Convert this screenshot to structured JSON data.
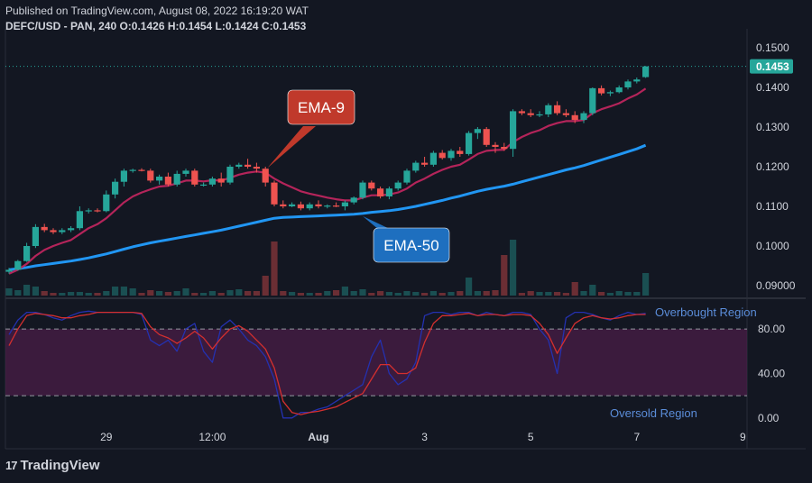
{
  "header": {
    "published": "Published on TradingView.com, August 08, 2022 16:19:20 WAT",
    "symbol_line": "DEFC/USD - PAN, 240 O:0.1426 H:0.1454 L:0.1424 C:0.1453"
  },
  "footer": {
    "brand": "TradingView",
    "logo": "17"
  },
  "colors": {
    "background": "#131722",
    "up": "#26a69a",
    "down": "#ef5350",
    "ema9": "#b4245a",
    "ema50": "#2196f3",
    "rsi_fast": "#2431b0",
    "rsi_slow": "#d32f2f",
    "rsi_band": "#4a1e47",
    "last_price_badge": "#26a69a",
    "ema9_callout": "#c0392b",
    "ema50_callout": "#1e6fbf"
  },
  "chart_data": [
    {
      "type": "candlestick",
      "symbol": "DEFC/USD",
      "exchange": "PAN",
      "timeframe": "240",
      "ylim": [
        0.0875,
        0.1525
      ],
      "yticks": [
        "0.1500",
        "0.1400",
        "0.1300",
        "0.1200",
        "0.1100",
        "0.1000",
        "0.09000"
      ],
      "ytick_values": [
        0.15,
        0.14,
        0.13,
        0.12,
        0.11,
        0.1,
        0.09
      ],
      "last_price_label": "0.1453",
      "last_price": 0.1453,
      "xticks": [
        {
          "label": "29",
          "index": 11
        },
        {
          "label": "12:00",
          "index": 23
        },
        {
          "label": "Aug",
          "index": 35
        },
        {
          "label": "3",
          "index": 47
        },
        {
          "label": "5",
          "index": 59
        },
        {
          "label": "7",
          "index": 71
        },
        {
          "label": "9",
          "index": 83
        }
      ],
      "candles": [
        [
          0.0935,
          0.0945,
          0.093,
          0.094
        ],
        [
          0.094,
          0.0965,
          0.0938,
          0.0962
        ],
        [
          0.0962,
          0.1008,
          0.096,
          0.1
        ],
        [
          0.1,
          0.1055,
          0.0995,
          0.1048
        ],
        [
          0.1048,
          0.1056,
          0.1035,
          0.104
        ],
        [
          0.104,
          0.1045,
          0.103,
          0.1035
        ],
        [
          0.1035,
          0.1045,
          0.103,
          0.104
        ],
        [
          0.104,
          0.105,
          0.1035,
          0.1045
        ],
        [
          0.1045,
          0.11,
          0.104,
          0.1088
        ],
        [
          0.1088,
          0.1095,
          0.1082,
          0.109
        ],
        [
          0.109,
          0.1095,
          0.1085,
          0.1088
        ],
        [
          0.1088,
          0.114,
          0.1085,
          0.113
        ],
        [
          0.113,
          0.117,
          0.112,
          0.1162
        ],
        [
          0.1162,
          0.1195,
          0.115,
          0.119
        ],
        [
          0.119,
          0.1195,
          0.1185,
          0.1192
        ],
        [
          0.1192,
          0.1196,
          0.1188,
          0.119
        ],
        [
          0.119,
          0.1195,
          0.116,
          0.1165
        ],
        [
          0.1165,
          0.118,
          0.1155,
          0.1175
        ],
        [
          0.1175,
          0.1185,
          0.115,
          0.1155
        ],
        [
          0.1155,
          0.119,
          0.115,
          0.1182
        ],
        [
          0.1182,
          0.1195,
          0.1175,
          0.119
        ],
        [
          0.119,
          0.1195,
          0.115,
          0.1155
        ],
        [
          0.1155,
          0.116,
          0.115,
          0.1155
        ],
        [
          0.1155,
          0.1175,
          0.115,
          0.117
        ],
        [
          0.117,
          0.1185,
          0.115,
          0.116
        ],
        [
          0.116,
          0.1205,
          0.1155,
          0.12
        ],
        [
          0.12,
          0.121,
          0.1195,
          0.1205
        ],
        [
          0.1205,
          0.122,
          0.1195,
          0.12
        ],
        [
          0.12,
          0.121,
          0.1185,
          0.1195
        ],
        [
          0.1195,
          0.12,
          0.115,
          0.116
        ],
        [
          0.116,
          0.1165,
          0.11,
          0.1105
        ],
        [
          0.1105,
          0.1115,
          0.1095,
          0.11
        ],
        [
          0.11,
          0.111,
          0.1098,
          0.1105
        ],
        [
          0.1105,
          0.1112,
          0.109,
          0.1095
        ],
        [
          0.1095,
          0.111,
          0.109,
          0.1105
        ],
        [
          0.1105,
          0.1115,
          0.1095,
          0.11
        ],
        [
          0.11,
          0.1105,
          0.1095,
          0.1102
        ],
        [
          0.1102,
          0.111,
          0.1098,
          0.11
        ],
        [
          0.11,
          0.1115,
          0.109,
          0.111
        ],
        [
          0.111,
          0.1125,
          0.1105,
          0.1122
        ],
        [
          0.1122,
          0.1165,
          0.1118,
          0.116
        ],
        [
          0.116,
          0.1165,
          0.114,
          0.1145
        ],
        [
          0.1145,
          0.115,
          0.112,
          0.1125
        ],
        [
          0.1125,
          0.115,
          0.1118,
          0.1145
        ],
        [
          0.1145,
          0.1165,
          0.114,
          0.116
        ],
        [
          0.116,
          0.1195,
          0.1155,
          0.119
        ],
        [
          0.119,
          0.1215,
          0.1185,
          0.121
        ],
        [
          0.121,
          0.1225,
          0.12,
          0.1205
        ],
        [
          0.1205,
          0.124,
          0.12,
          0.1235
        ],
        [
          0.1235,
          0.1242,
          0.1218,
          0.1222
        ],
        [
          0.1222,
          0.1245,
          0.1215,
          0.124
        ],
        [
          0.124,
          0.125,
          0.1225,
          0.1232
        ],
        [
          0.1232,
          0.129,
          0.1228,
          0.1285
        ],
        [
          0.1285,
          0.13,
          0.127,
          0.1295
        ],
        [
          0.1295,
          0.13,
          0.125,
          0.1255
        ],
        [
          0.1255,
          0.1262,
          0.1235,
          0.125
        ],
        [
          0.125,
          0.126,
          0.124,
          0.1245
        ],
        [
          0.1245,
          0.1345,
          0.1225,
          0.134
        ],
        [
          0.134,
          0.1345,
          0.133,
          0.1335
        ],
        [
          0.1335,
          0.1345,
          0.1325,
          0.133
        ],
        [
          0.133,
          0.134,
          0.1325,
          0.1332
        ],
        [
          0.1332,
          0.136,
          0.1325,
          0.1355
        ],
        [
          0.1355,
          0.1365,
          0.133,
          0.1335
        ],
        [
          0.1335,
          0.1345,
          0.1325,
          0.133
        ],
        [
          0.133,
          0.134,
          0.131,
          0.1318
        ],
        [
          0.1318,
          0.134,
          0.131,
          0.1335
        ],
        [
          0.1335,
          0.14,
          0.133,
          0.1398
        ],
        [
          0.1398,
          0.1405,
          0.138,
          0.1385
        ],
        [
          0.1385,
          0.1392,
          0.1378,
          0.1388
        ],
        [
          0.1388,
          0.1405,
          0.1385,
          0.14
        ],
        [
          0.14,
          0.142,
          0.1395,
          0.1415
        ],
        [
          0.1415,
          0.1425,
          0.141,
          0.142
        ],
        [
          0.1426,
          0.1454,
          0.1424,
          0.1453
        ]
      ],
      "volumes": [
        0.8,
        0.6,
        1.2,
        1.0,
        0.5,
        0.3,
        0.3,
        0.4,
        0.4,
        0.3,
        0.3,
        0.5,
        1.0,
        1.0,
        0.8,
        0.3,
        0.6,
        0.5,
        0.4,
        0.5,
        0.8,
        0.3,
        0.3,
        0.5,
        0.3,
        0.6,
        0.7,
        0.5,
        0.5,
        2.2,
        6.0,
        0.5,
        0.4,
        0.3,
        0.3,
        0.3,
        0.5,
        0.6,
        1.0,
        0.5,
        0.7,
        0.3,
        0.5,
        0.4,
        0.3,
        0.5,
        0.4,
        0.3,
        0.5,
        0.3,
        0.4,
        0.5,
        2.0,
        0.5,
        0.5,
        0.6,
        4.5,
        6.2,
        0.3,
        0.5,
        0.4,
        0.4,
        0.4,
        0.3,
        1.5,
        0.5,
        1.2,
        0.4,
        0.3,
        0.5,
        0.4,
        0.4,
        2.5
      ],
      "ema9": [
        0.093,
        0.094,
        0.0955,
        0.0975,
        0.099,
        0.1,
        0.1008,
        0.1015,
        0.103,
        0.1045,
        0.1055,
        0.107,
        0.109,
        0.111,
        0.1125,
        0.1135,
        0.1143,
        0.115,
        0.1152,
        0.1158,
        0.1165,
        0.1165,
        0.1163,
        0.1166,
        0.1165,
        0.1172,
        0.118,
        0.1185,
        0.1188,
        0.1185,
        0.117,
        0.1158,
        0.1148,
        0.1138,
        0.1132,
        0.1127,
        0.1122,
        0.1118,
        0.1115,
        0.1115,
        0.1122,
        0.1128,
        0.1128,
        0.113,
        0.1135,
        0.1145,
        0.116,
        0.117,
        0.1182,
        0.1192,
        0.12,
        0.1205,
        0.1218,
        0.1232,
        0.124,
        0.1242,
        0.1243,
        0.1262,
        0.1275,
        0.1285,
        0.1292,
        0.1303,
        0.131,
        0.1315,
        0.1315,
        0.1318,
        0.1335,
        0.1345,
        0.1352,
        0.136,
        0.1372,
        0.1382,
        0.1397
      ],
      "ema50": [
        0.094,
        0.0943,
        0.0946,
        0.095,
        0.0953,
        0.0956,
        0.0959,
        0.0962,
        0.0966,
        0.097,
        0.0975,
        0.098,
        0.0986,
        0.0992,
        0.0998,
        0.1003,
        0.1008,
        0.1012,
        0.1016,
        0.102,
        0.1024,
        0.1028,
        0.1032,
        0.1036,
        0.104,
        0.1045,
        0.105,
        0.1055,
        0.106,
        0.1065,
        0.107,
        0.1072,
        0.1073,
        0.1074,
        0.1075,
        0.1076,
        0.1077,
        0.1078,
        0.1079,
        0.108,
        0.1082,
        0.1085,
        0.1087,
        0.1089,
        0.1092,
        0.1096,
        0.11,
        0.1105,
        0.111,
        0.1115,
        0.1121,
        0.1126,
        0.1132,
        0.1138,
        0.1143,
        0.1147,
        0.1151,
        0.1156,
        0.1162,
        0.1168,
        0.1174,
        0.118,
        0.1186,
        0.1192,
        0.1197,
        0.1203,
        0.121,
        0.1217,
        0.1224,
        0.1231,
        0.1238,
        0.1245,
        0.1254
      ]
    },
    {
      "type": "line",
      "name": "stochastic",
      "ylim": [
        -5,
        106
      ],
      "yticks": [
        "80.00",
        "40.00",
        "0.00"
      ],
      "ytick_values": [
        80,
        40,
        0
      ],
      "band": [
        20,
        80
      ],
      "annotations": [
        "Overbought Region",
        "Oversold Region"
      ],
      "series": [
        {
          "values": [
            75,
            88,
            95,
            95,
            93,
            90,
            88,
            92,
            95,
            96,
            95,
            95,
            95,
            95,
            95,
            93,
            70,
            65,
            70,
            60,
            80,
            85,
            60,
            50,
            82,
            88,
            80,
            70,
            65,
            55,
            35,
            0,
            0,
            5,
            5,
            8,
            10,
            15,
            20,
            25,
            30,
            55,
            70,
            40,
            30,
            35,
            50,
            92,
            95,
            95,
            93,
            95,
            95,
            92,
            95,
            93,
            92,
            95,
            95,
            93,
            80,
            70,
            40,
            90,
            95,
            95,
            93,
            90,
            88,
            92,
            95,
            93,
            94
          ]
        },
        {
          "values": [
            65,
            80,
            92,
            94,
            93,
            92,
            90,
            90,
            92,
            93,
            95,
            95,
            95,
            95,
            95,
            94,
            82,
            75,
            72,
            67,
            72,
            78,
            72,
            62,
            72,
            80,
            83,
            78,
            70,
            62,
            45,
            15,
            5,
            3,
            5,
            6,
            8,
            10,
            14,
            18,
            22,
            35,
            48,
            48,
            40,
            40,
            45,
            68,
            85,
            92,
            92,
            93,
            94,
            92,
            93,
            93,
            92,
            93,
            93,
            92,
            85,
            75,
            58,
            72,
            85,
            90,
            92,
            90,
            89,
            90,
            92,
            93,
            93
          ]
        }
      ]
    }
  ],
  "callouts": {
    "ema9": "EMA-9",
    "ema50": "EMA-50"
  }
}
